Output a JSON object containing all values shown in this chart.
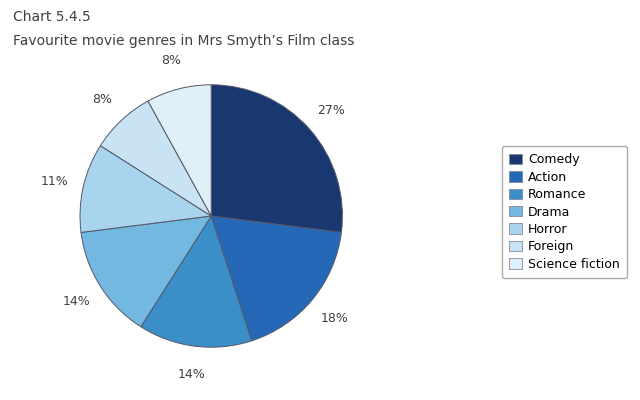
{
  "title_line1": "Chart 5.4.5",
  "title_line2": "Favourite movie genres in Mrs Smyth’s Film class",
  "labels": [
    "Comedy",
    "Action",
    "Romance",
    "Drama",
    "Horror",
    "Foreign",
    "Science fiction"
  ],
  "values": [
    27,
    18,
    14,
    14,
    11,
    8,
    8
  ],
  "colors": [
    "#1a3870",
    "#2568b8",
    "#3a8fc8",
    "#72b8e0",
    "#a8d4ee",
    "#c8e4f4",
    "#e0f0f8"
  ],
  "pct_labels": [
    "27%",
    "18%",
    "14%",
    "14%",
    "11%",
    "8%",
    "8%"
  ],
  "background_color": "#ffffff",
  "text_color": "#404040",
  "edge_color": "#555566",
  "label_fontsize": 9,
  "title_fontsize": 10,
  "legend_fontsize": 9
}
